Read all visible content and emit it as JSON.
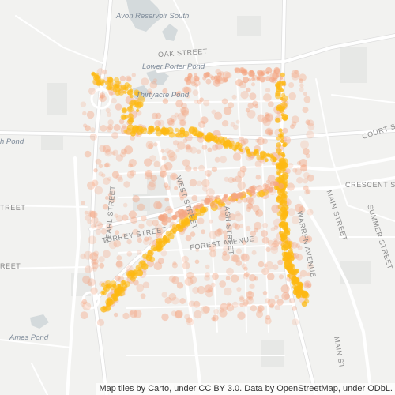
{
  "map": {
    "labels": {
      "avon_reservoir_south": "Avon Reservoir South",
      "oak_street": "OAK STREET",
      "lower_porter_pond": "Lower Porter Pond",
      "thirtyacre_pond": "Thirtyacre Pond",
      "court_street": "COURT ST",
      "crescent_street": "CRESCENT ST",
      "pond_left": "h Pond",
      "street_left": "TREET",
      "pearl_street": "PEARL STREET",
      "west_street": "WEST STREET",
      "torrey_street": "TORREY STREET",
      "forest_avenue": "FOREST AVENUE",
      "ash_street": "ASH STREET",
      "warren_avenue": "WARREN AVENUE",
      "main_street": "MAIN STREET",
      "summer_street": "SUMMER STREET",
      "ames_pond": "Ames Pond",
      "main_street_south": "MAIN ST",
      "left_reet_bottom": "REET"
    },
    "attribution": "Map tiles by Carto, under CC BY 3.0. Data by OpenStreetMap, under ODbL.",
    "colors": {
      "background": "#f2f2f0",
      "road": "#ffffff",
      "road_casing": "#dcdcdc",
      "water": "#d4dadc",
      "park": "#e6e8e6",
      "heat_low": "#f4a582",
      "heat_high": "#fdb913"
    }
  }
}
